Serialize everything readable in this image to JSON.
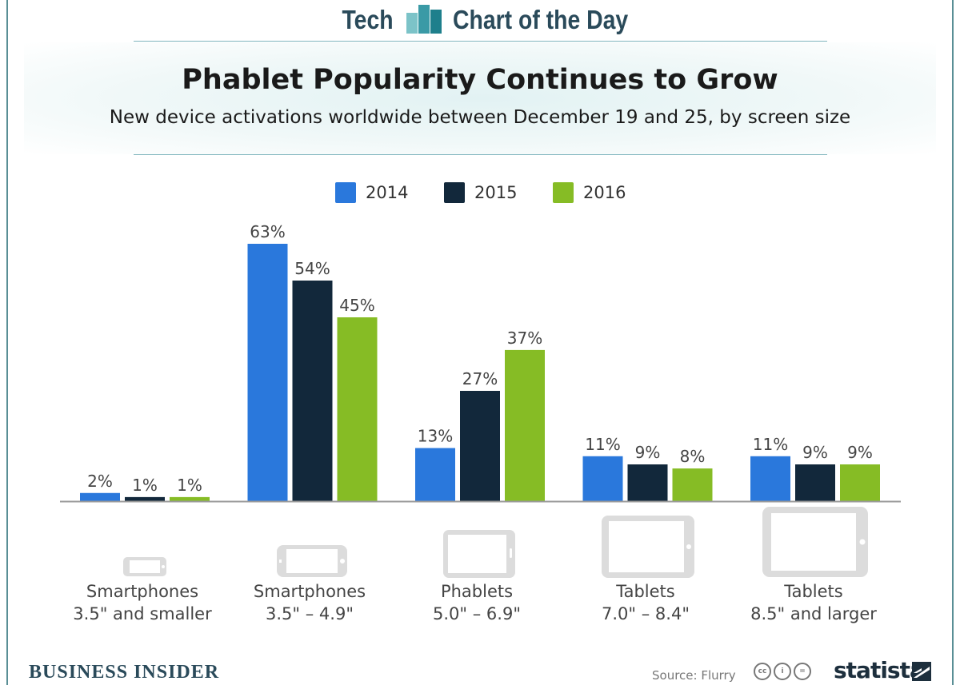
{
  "header": {
    "brand_left": "Tech",
    "brand_right": "Chart of the Day"
  },
  "chart_data": {
    "type": "bar",
    "title": "Phablet Popularity Continues to Grow",
    "subtitle": "New device activations worldwide between December 19 and 25, by screen size",
    "categories": [
      [
        "Smartphones",
        "3.5\" and smaller"
      ],
      [
        "Smartphones",
        "3.5\" – 4.9\""
      ],
      [
        "Phablets",
        "5.0\" – 6.9\""
      ],
      [
        "Tablets",
        "7.0\" – 8.4\""
      ],
      [
        "Tablets",
        "8.5\" and larger"
      ]
    ],
    "series": [
      {
        "name": "2014",
        "color": "#2a78dc",
        "values": [
          2,
          63,
          13,
          11,
          11
        ],
        "labels": [
          "2%",
          "63%",
          "13%",
          "11%",
          "11%"
        ]
      },
      {
        "name": "2015",
        "color": "#12283b",
        "values": [
          1,
          54,
          27,
          9,
          9
        ],
        "labels": [
          "1%",
          "54%",
          "27%",
          "9%",
          "9%"
        ]
      },
      {
        "name": "2016",
        "color": "#86bc25",
        "values": [
          1,
          45,
          37,
          8,
          9
        ],
        "labels": [
          "1%",
          "45%",
          "37%",
          "8%",
          "9%"
        ]
      }
    ],
    "unit": "%",
    "ylim": [
      0,
      63
    ],
    "legend_position": "top-center",
    "grid": false
  },
  "device_icons": [
    "small-phone-icon",
    "phone-icon",
    "phablet-icon",
    "small-tablet-icon",
    "large-tablet-icon"
  ],
  "footer": {
    "publisher": "BUSINESS INSIDER",
    "source": "Source: Flurry",
    "license_icons": [
      "cc",
      "i",
      "="
    ],
    "brand": "statista"
  },
  "colors": {
    "accent": "#2a4a5a",
    "rule": "#7fb5bd"
  }
}
